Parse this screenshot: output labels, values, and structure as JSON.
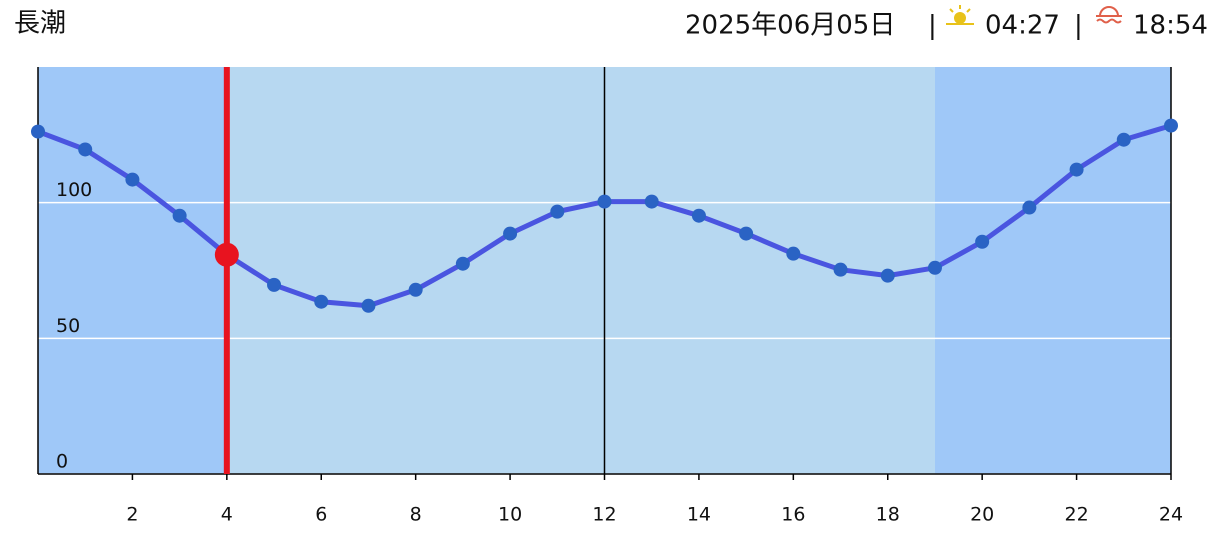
{
  "chart_data": {
    "type": "line",
    "title": "長潮",
    "date": "2025年06月05日",
    "separator": "|",
    "sunrise": "04:27",
    "sunset": "18:54",
    "x": [
      0,
      1,
      2,
      3,
      4,
      5,
      6,
      7,
      8,
      9,
      10,
      11,
      12,
      13,
      14,
      15,
      16,
      17,
      18,
      19,
      20,
      21,
      22,
      23,
      24
    ],
    "values": [
      126.2,
      119.6,
      108.5,
      95.2,
      80.8,
      69.7,
      63.5,
      62.0,
      67.9,
      77.5,
      88.6,
      96.7,
      100.4,
      100.4,
      95.2,
      88.6,
      81.2,
      75.3,
      73.1,
      76.0,
      85.6,
      98.2,
      112.2,
      123.2,
      128.4
    ],
    "color": "#4a55e0",
    "point_color": "#2a63c4",
    "marker_x": 4,
    "marker_color": "#e8131f",
    "xlim": [
      0,
      24
    ],
    "xticks": [
      2,
      4,
      6,
      8,
      10,
      12,
      14,
      16,
      18,
      20,
      22,
      24
    ],
    "ylim": [
      0,
      150
    ],
    "yticks": [
      0,
      50,
      100
    ],
    "grid": true
  }
}
